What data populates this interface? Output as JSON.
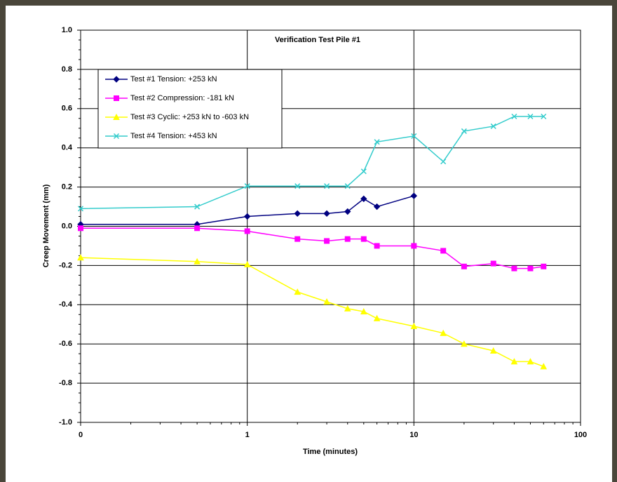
{
  "chart_data": {
    "type": "line",
    "title": "Verification Test Pile #1",
    "x_label": "Time (minutes)",
    "y_label": "Creep Movement (mm)",
    "xscale": "log",
    "xlim": [
      0.1,
      100
    ],
    "xticks": [
      {
        "value": 0.1,
        "label": "0"
      },
      1,
      10,
      100
    ],
    "ylim": [
      -1.0,
      1.0
    ],
    "yticks": [
      {
        "value": -1.0,
        "label": "-1.0"
      },
      -0.8,
      -0.6,
      -0.4,
      -0.2,
      {
        "value": 0,
        "label": "0.0"
      },
      0.2,
      0.4,
      0.6,
      0.8,
      {
        "value": 1.0,
        "label": "1.0"
      }
    ],
    "grid": true,
    "legend": "upper left",
    "series": [
      {
        "name": "Test #1 Tension: +253 kN",
        "color": "#000080",
        "marker": "diamond",
        "x": [
          0.1,
          0.5,
          1,
          2,
          3,
          4,
          5,
          6,
          10
        ],
        "values": [
          0.01,
          0.01,
          0.05,
          0.065,
          0.065,
          0.075,
          0.14,
          0.1,
          0.155
        ]
      },
      {
        "name": "Test #2 Compression: -181 kN",
        "color": "#ff00ff",
        "marker": "square",
        "x": [
          0.1,
          0.5,
          1,
          2,
          3,
          4,
          5,
          6,
          10,
          15,
          20,
          30,
          40,
          50,
          60
        ],
        "values": [
          -0.01,
          -0.01,
          -0.025,
          -0.065,
          -0.075,
          -0.065,
          -0.065,
          -0.1,
          -0.1,
          -0.125,
          -0.205,
          -0.19,
          -0.215,
          -0.215,
          -0.205
        ]
      },
      {
        "name": "Test #3 Cyclic: +253 kN to -603 kN",
        "color": "#ffff00",
        "marker": "triangle",
        "x": [
          0.1,
          0.5,
          1,
          2,
          3,
          4,
          5,
          6,
          10,
          15,
          20,
          30,
          40,
          50,
          60
        ],
        "values": [
          -0.16,
          -0.18,
          -0.195,
          -0.335,
          -0.385,
          -0.42,
          -0.435,
          -0.47,
          -0.51,
          -0.545,
          -0.6,
          -0.635,
          -0.69,
          -0.69,
          -0.715
        ]
      },
      {
        "name": "Test #4 Tension: +453 kN",
        "color": "#33cccc",
        "marker": "x",
        "x": [
          0.1,
          0.5,
          1,
          2,
          3,
          4,
          5,
          6,
          10,
          15,
          20,
          30,
          40,
          50,
          60
        ],
        "values": [
          0.09,
          0.1,
          0.205,
          0.205,
          0.205,
          0.205,
          0.28,
          0.43,
          0.46,
          0.33,
          0.485,
          0.51,
          0.56,
          0.56,
          0.56
        ]
      }
    ]
  }
}
